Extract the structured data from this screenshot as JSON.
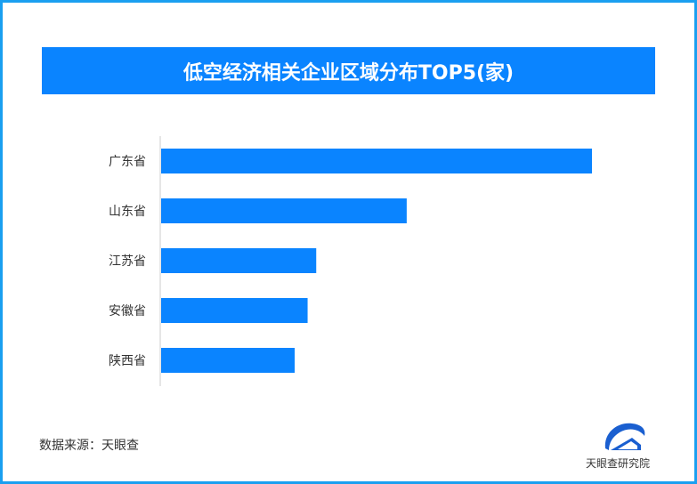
{
  "chart_data": {
    "type": "bar",
    "orientation": "horizontal",
    "title": "低空经济相关企业区域分布TOP5(家)",
    "categories": [
      "广东省",
      "山东省",
      "江苏省",
      "安徽省",
      "陕西省"
    ],
    "values": [
      1.0,
      0.57,
      0.36,
      0.34,
      0.31
    ],
    "value_note_relative": true,
    "bar_color": "#0a84ff",
    "grid": false,
    "legend": "none"
  },
  "source": "数据来源：天眼查",
  "logo_text": "天眼查研究院",
  "colors": {
    "border": "#1a9ff0",
    "title_bg": "#0a84ff"
  }
}
